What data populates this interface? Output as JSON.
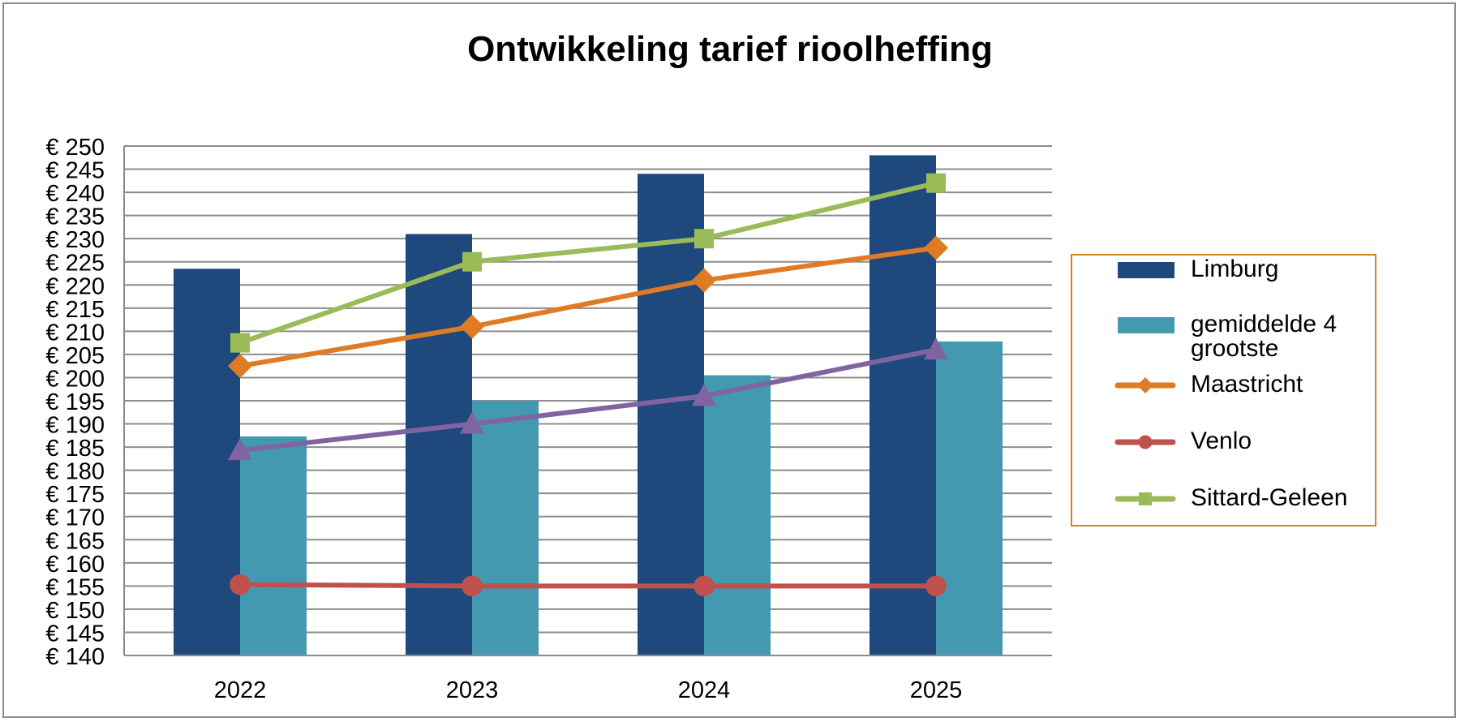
{
  "chart_data": {
    "type": "bar",
    "title": "Ontwikkeling tarief rioolheffing",
    "xlabel": "",
    "ylabel": "",
    "categories": [
      "2022",
      "2023",
      "2024",
      "2025"
    ],
    "ylim": [
      140,
      250
    ],
    "ytick_step": 5,
    "ytick_prefix": "€ ",
    "grid": true,
    "legend_position": "right",
    "series": [
      {
        "name": "Limburg",
        "kind": "bar",
        "color": "#1f497d",
        "values": [
          223.5,
          231,
          244,
          248
        ]
      },
      {
        "name": "gemiddelde 4 grootste",
        "kind": "bar",
        "color": "#4299b0",
        "values": [
          187.3,
          195,
          200.5,
          207.8
        ]
      },
      {
        "name": "Maastricht",
        "kind": "line",
        "marker": "diamond",
        "color": "#e07b25",
        "values": [
          202.5,
          211,
          221,
          228
        ]
      },
      {
        "name": "Venlo",
        "kind": "line",
        "marker": "circle",
        "color": "#c0504d",
        "values": [
          155.3,
          155,
          155,
          155
        ]
      },
      {
        "name": "Sittard-Geleen",
        "kind": "line",
        "marker": "square",
        "color": "#9bbb59",
        "values": [
          207.5,
          225,
          230,
          242
        ]
      },
      {
        "name": "",
        "kind": "line",
        "marker": "triangle",
        "color": "#8064a2",
        "values": [
          184.3,
          190,
          196,
          206
        ]
      }
    ]
  }
}
